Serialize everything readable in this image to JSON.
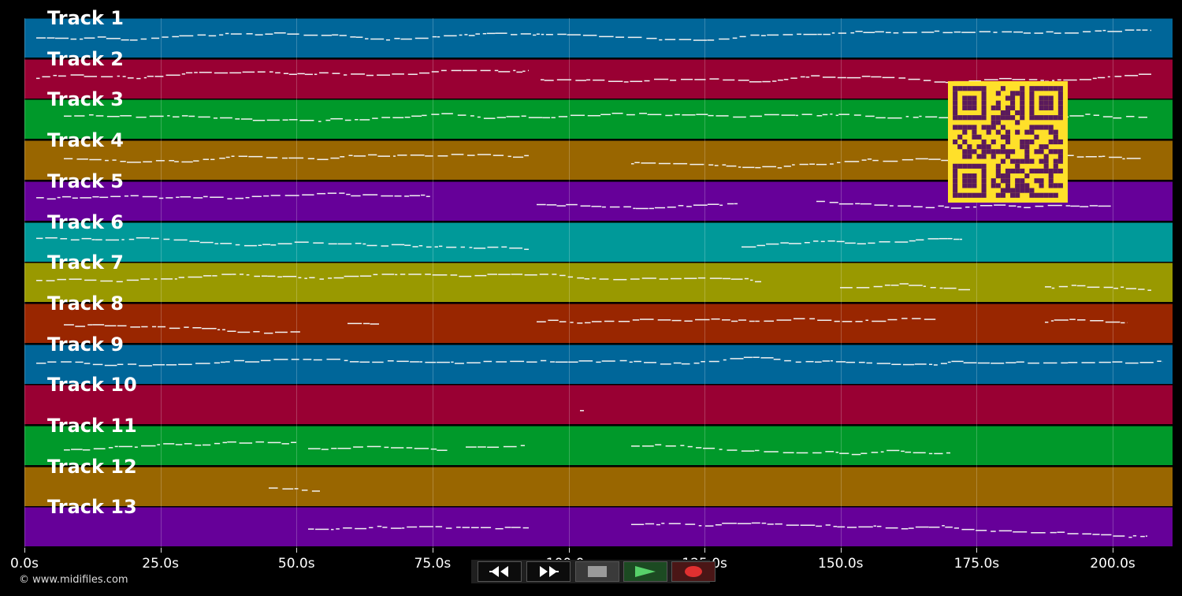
{
  "tracks": [
    {
      "label": "Track 1",
      "color": "#006699"
    },
    {
      "label": "Track 2",
      "color": "#990033"
    },
    {
      "label": "Track 3",
      "color": "#00992a"
    },
    {
      "label": "Track 4",
      "color": "#996600"
    },
    {
      "label": "Track 5",
      "color": "#660099"
    },
    {
      "label": "Track 6",
      "color": "#009999"
    },
    {
      "label": "Track 7",
      "color": "#999900"
    },
    {
      "label": "Track 8",
      "color": "#992600"
    },
    {
      "label": "Track 9",
      "color": "#006699"
    },
    {
      "label": "Track 10",
      "color": "#990033"
    },
    {
      "label": "Track 11",
      "color": "#00992a"
    },
    {
      "label": "Track 12",
      "color": "#996600"
    },
    {
      "label": "Track 13",
      "color": "#660099"
    }
  ],
  "axis": {
    "max_seconds": 211,
    "ticks": [
      {
        "value": 0,
        "label": "0.0s"
      },
      {
        "value": 25,
        "label": "25.0s"
      },
      {
        "value": 50,
        "label": "50.0s"
      },
      {
        "value": 75,
        "label": "75.0s"
      },
      {
        "value": 100,
        "label": "100.0s"
      },
      {
        "value": 125,
        "label": "125.0s"
      },
      {
        "value": 150,
        "label": "150.0s"
      },
      {
        "value": 175,
        "label": "175.0s"
      },
      {
        "value": 200,
        "label": "200.0s"
      }
    ]
  },
  "copyright": "© www.midifiles.com",
  "controls": {
    "rewind": "rewind-icon",
    "fast_forward": "fast-forward-icon",
    "stop": "stop-icon",
    "play": "play-icon",
    "record": "record-icon"
  },
  "qr_code": {
    "icon": "qr-code-icon",
    "fg_color": "#5a1a5c",
    "bg_color": "#ffe02a"
  }
}
